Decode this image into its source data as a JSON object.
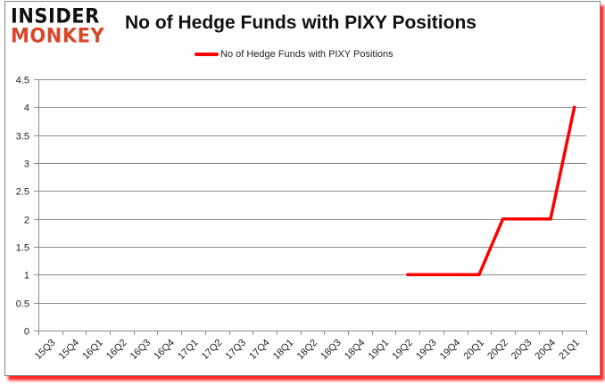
{
  "brand": {
    "logo_top": "INSIDER",
    "logo_bottom": "MONKEY",
    "logo_top_color": "#111111",
    "logo_bottom_color": "#d9472b"
  },
  "chart": {
    "title": "No of Hedge Funds with PIXY Positions",
    "legend_label": "No of Hedge Funds with PIXY Positions",
    "line_color": "#ff0000",
    "frame_shadow_color": "#ff0000"
  },
  "chart_data": {
    "type": "line",
    "title": "No of Hedge Funds with PIXY Positions",
    "xlabel": "",
    "ylabel": "",
    "categories": [
      "15Q3",
      "15Q4",
      "16Q1",
      "16Q2",
      "16Q3",
      "16Q4",
      "17Q1",
      "17Q2",
      "17Q3",
      "17Q4",
      "18Q1",
      "18Q2",
      "18Q3",
      "18Q4",
      "19Q1",
      "19Q2",
      "19Q3",
      "19Q4",
      "20Q1",
      "20Q2",
      "20Q3",
      "20Q4",
      "21Q1"
    ],
    "series": [
      {
        "name": "No of Hedge Funds with PIXY Positions",
        "color": "#ff0000",
        "values": [
          null,
          null,
          null,
          null,
          null,
          null,
          null,
          null,
          null,
          null,
          null,
          null,
          null,
          null,
          null,
          1,
          1,
          1,
          1,
          2,
          2,
          2,
          4
        ]
      }
    ],
    "ylim": [
      0,
      4.5
    ],
    "yticks": [
      "0",
      "0.5",
      "1",
      "1.5",
      "2",
      "2.5",
      "3",
      "3.5",
      "4",
      "4.5"
    ],
    "grid": true,
    "legend_position": "top"
  }
}
